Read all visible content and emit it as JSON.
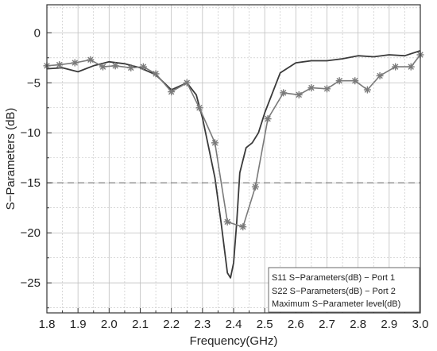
{
  "chart_data": {
    "type": "line",
    "xlabel": "Frequency(GHz)",
    "ylabel": "S−Parameters (dB)",
    "xlim": [
      1.8,
      3.0
    ],
    "ylim": [
      -28,
      2.8
    ],
    "x_ticks": [
      "1.8",
      "1.9",
      "2.0",
      "2.1",
      "2.2",
      "2.3",
      "2.4",
      "2.5",
      "2.6",
      "2.7",
      "2.8",
      "2.9",
      "3.0"
    ],
    "x_tick_values": [
      1.8,
      1.9,
      2.0,
      2.1,
      2.2,
      2.3,
      2.4,
      2.5,
      2.6,
      2.7,
      2.8,
      2.9,
      3.0
    ],
    "y_ticks": [
      "0",
      "−5",
      "−10",
      "−15",
      "−20",
      "−25"
    ],
    "y_tick_values": [
      0,
      -5,
      -10,
      -15,
      -20,
      -25
    ],
    "grid": true,
    "legend_position": "bottom-right",
    "series": [
      {
        "name": "S11 S−Parameters(dB) − Port 1",
        "color": "#3a3a3a",
        "marker": "none",
        "x": [
          1.8,
          1.85,
          1.9,
          1.95,
          2.0,
          2.05,
          2.1,
          2.15,
          2.2,
          2.25,
          2.28,
          2.3,
          2.32,
          2.34,
          2.36,
          2.38,
          2.39,
          2.4,
          2.41,
          2.42,
          2.44,
          2.46,
          2.48,
          2.5,
          2.55,
          2.6,
          2.65,
          2.7,
          2.75,
          2.8,
          2.85,
          2.9,
          2.95,
          3.0
        ],
        "y": [
          -3.6,
          -3.5,
          -3.9,
          -3.3,
          -2.9,
          -3.1,
          -3.5,
          -4.2,
          -5.7,
          -5.0,
          -6.2,
          -8.5,
          -11.5,
          -14.5,
          -19.0,
          -24.0,
          -24.5,
          -23.0,
          -19.0,
          -14.0,
          -11.5,
          -11.0,
          -10.0,
          -8.0,
          -4.0,
          -3.0,
          -2.8,
          -2.8,
          -2.6,
          -2.3,
          -2.4,
          -2.2,
          -2.3,
          -1.8
        ]
      },
      {
        "name": "S22 S−Parameters(dB) − Port 2",
        "color": "#7a7a7a",
        "marker": "asterisk",
        "x": [
          1.8,
          1.84,
          1.89,
          1.94,
          1.98,
          2.02,
          2.07,
          2.11,
          2.15,
          2.2,
          2.25,
          2.29,
          2.34,
          2.38,
          2.43,
          2.47,
          2.51,
          2.56,
          2.61,
          2.65,
          2.7,
          2.74,
          2.79,
          2.83,
          2.87,
          2.92,
          2.97,
          3.0
        ],
        "y": [
          -3.3,
          -3.2,
          -3.0,
          -2.7,
          -3.4,
          -3.3,
          -3.5,
          -3.4,
          -4.1,
          -5.9,
          -5.0,
          -7.5,
          -11.0,
          -18.9,
          -19.4,
          -15.4,
          -8.6,
          -6.0,
          -6.2,
          -5.5,
          -5.6,
          -4.8,
          -4.8,
          -5.7,
          -4.3,
          -3.4,
          -3.4,
          -2.2
        ]
      },
      {
        "name": "Maximum S−Parameter level(dB)",
        "color": "#777777",
        "marker": "none",
        "dash": "dashed",
        "x": [
          1.8,
          3.0
        ],
        "y": [
          -15,
          -15
        ]
      }
    ]
  }
}
